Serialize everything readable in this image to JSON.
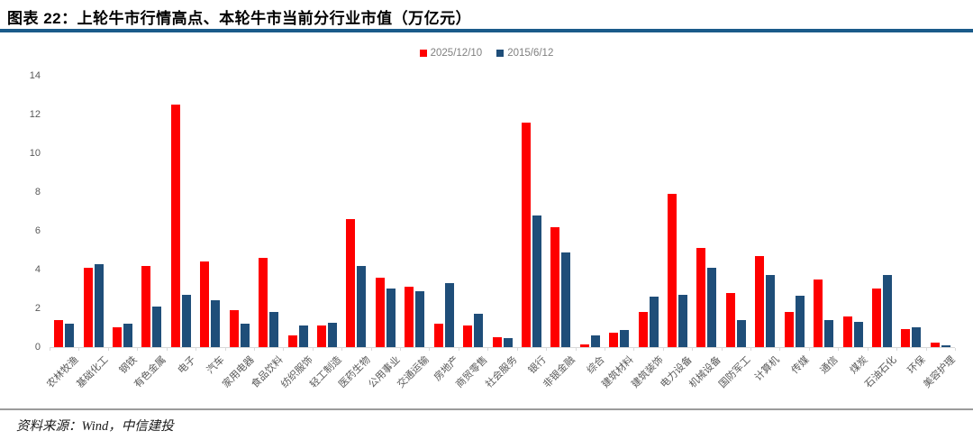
{
  "title": "图表 22：上轮牛市行情高点、本轮牛市当前分行业市值（万亿元）",
  "source": "资料来源：Wind，中信建投",
  "colors": {
    "series_2025": "#fe0000",
    "series_2015": "#1f4e79",
    "title_rule": "#1a5b8a",
    "axis_text": "#595959",
    "legend_text": "#808080",
    "baseline": "#d9d9d9",
    "source_rule": "#9b9b9b"
  },
  "chart_data": {
    "type": "bar",
    "title": "图表 22：上轮牛市行情高点、本轮牛市当前分行业市值（万亿元）",
    "xlabel": "",
    "ylabel": "",
    "ylim": [
      0,
      14
    ],
    "yticks": [
      0,
      2,
      4,
      6,
      8,
      10,
      12,
      14
    ],
    "grid": false,
    "legend_position": "top-center",
    "categories": [
      "农林牧渔",
      "基础化工",
      "钢铁",
      "有色金属",
      "电子",
      "汽车",
      "家用电器",
      "食品饮料",
      "纺织服饰",
      "轻工制造",
      "医药生物",
      "公用事业",
      "交通运输",
      "房地产",
      "商贸零售",
      "社会服务",
      "银行",
      "非银金融",
      "综合",
      "建筑材料",
      "建筑装饰",
      "电力设备",
      "机械设备",
      "国防军工",
      "计算机",
      "传媒",
      "通信",
      "煤炭",
      "石油石化",
      "环保",
      "美容护理"
    ],
    "series": [
      {
        "name": "2025/12/10",
        "color": "#fe0000",
        "values": [
          1.4,
          4.1,
          1.0,
          4.2,
          12.5,
          4.4,
          1.9,
          4.6,
          0.6,
          1.1,
          6.6,
          3.6,
          3.1,
          1.2,
          1.1,
          0.5,
          11.6,
          6.2,
          0.15,
          0.75,
          1.8,
          7.9,
          5.1,
          2.8,
          4.7,
          1.8,
          3.5,
          1.6,
          3.0,
          0.95,
          0.25
        ]
      },
      {
        "name": "2015/6/12",
        "color": "#1f4e79",
        "values": [
          1.2,
          4.3,
          1.2,
          2.1,
          2.7,
          2.4,
          1.2,
          1.8,
          1.1,
          1.25,
          4.2,
          3.0,
          2.9,
          3.3,
          1.7,
          0.45,
          6.8,
          4.9,
          0.6,
          0.9,
          2.6,
          2.7,
          4.1,
          1.4,
          3.7,
          2.65,
          1.4,
          1.3,
          3.7,
          1.0,
          0.1
        ]
      }
    ]
  }
}
